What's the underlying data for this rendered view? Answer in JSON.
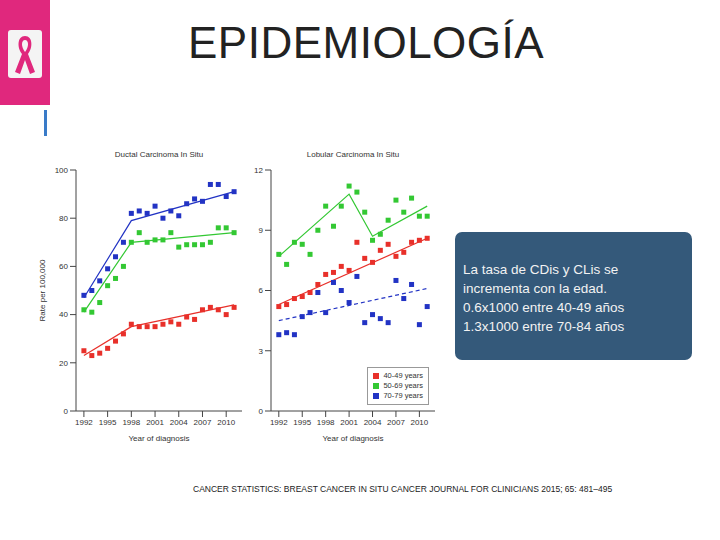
{
  "slide": {
    "title": "EPIDEMIOLOGÍA",
    "note": [
      "La tasa de CDis y CLis se",
      "incrementa con la edad.",
      "0.6x1000 entre 40-49 años",
      "1.3x1000 entre 70-84 años"
    ],
    "source": "CANCER STATISTICS: BREAST CANCER IN SITU CANCER JOURNAL FOR CLINICIANS 2015; 65: 481–495"
  },
  "chart_data": [
    {
      "type": "scatter",
      "title": "Ductal Carcinoma In Situ",
      "x_label": "Year of diagnosis",
      "y_label": "Rate per 100,000",
      "xlim": [
        1991,
        2012
      ],
      "xticks": [
        1992,
        1995,
        1998,
        2001,
        2004,
        2007,
        2010
      ],
      "ylim": [
        0,
        100
      ],
      "yticks": [
        0,
        20,
        40,
        60,
        80,
        100
      ],
      "grid": false,
      "x": [
        1992,
        1993,
        1994,
        1995,
        1996,
        1997,
        1998,
        1999,
        2000,
        2001,
        2002,
        2003,
        2004,
        2005,
        2006,
        2007,
        2008,
        2009,
        2010,
        2011
      ],
      "series": [
        {
          "type": "line",
          "color": "#e8302a",
          "line_style": "solid",
          "x": [
            1992,
            1998,
            2011
          ],
          "values": [
            23,
            35,
            44
          ]
        },
        {
          "type": "line",
          "color": "#33c833",
          "line_style": "solid",
          "x": [
            1992,
            1998,
            2011
          ],
          "values": [
            41,
            70,
            74
          ]
        },
        {
          "type": "line",
          "color": "#2233c4",
          "line_style": "solid",
          "x": [
            1992,
            1998,
            2011
          ],
          "values": [
            47,
            79,
            91
          ]
        },
        {
          "name": "40-49 years",
          "color": "#e8302a",
          "marker": "square",
          "values": [
            25,
            23,
            24,
            26,
            29,
            32,
            36,
            35,
            35,
            35,
            36,
            37,
            36,
            39,
            38,
            42,
            43,
            42,
            40,
            43
          ]
        },
        {
          "name": "50-69 years",
          "color": "#33c833",
          "marker": "square",
          "values": [
            42,
            41,
            45,
            52,
            55,
            60,
            70,
            74,
            70,
            71,
            71,
            74,
            68,
            69,
            69,
            69,
            70,
            76,
            76,
            74
          ]
        },
        {
          "name": "70-79 years",
          "color": "#2233c4",
          "marker": "square",
          "values": [
            48,
            50,
            54,
            59,
            64,
            70,
            82,
            83,
            82,
            85,
            80,
            83,
            81,
            86,
            88,
            87,
            94,
            94,
            89,
            91
          ]
        }
      ]
    },
    {
      "type": "scatter",
      "title": "Lobular Carcinoma In Situ",
      "x_label": "Year of diagnosis",
      "xlim": [
        1991,
        2012
      ],
      "xticks": [
        1992,
        1995,
        1998,
        2001,
        2004,
        2007,
        2010
      ],
      "ylim": [
        0,
        12
      ],
      "yticks": [
        0,
        3,
        6,
        9,
        12
      ],
      "grid": false,
      "legend": "lower right",
      "x": [
        1992,
        1993,
        1994,
        1995,
        1996,
        1997,
        1998,
        1999,
        2000,
        2001,
        2002,
        2003,
        2004,
        2005,
        2006,
        2007,
        2008,
        2009,
        2010,
        2011
      ],
      "series": [
        {
          "type": "line",
          "color": "#e8302a",
          "line_style": "solid",
          "x": [
            1992,
            2011
          ],
          "values": [
            5.3,
            8.6
          ]
        },
        {
          "type": "line",
          "color": "#33c833",
          "line_style": "solid",
          "x": [
            1992,
            2001,
            2004,
            2011
          ],
          "values": [
            7.7,
            10.8,
            8.7,
            10.2
          ]
        },
        {
          "type": "line",
          "color": "#2233c4",
          "line_style": "dashed",
          "x": [
            1992,
            2011
          ],
          "values": [
            4.5,
            6.1
          ]
        },
        {
          "name": "40-49 years",
          "color": "#e8302a",
          "marker": "square",
          "values": [
            5.2,
            5.3,
            5.6,
            5.7,
            5.9,
            6.3,
            6.8,
            6.9,
            7.2,
            7.0,
            8.4,
            7.6,
            7.4,
            8.0,
            8.3,
            7.7,
            7.9,
            8.4,
            8.5,
            8.6
          ]
        },
        {
          "name": "50-69 years",
          "color": "#33c833",
          "marker": "square",
          "values": [
            7.8,
            7.3,
            8.4,
            8.3,
            7.8,
            9.0,
            10.2,
            9.2,
            10.2,
            11.2,
            10.9,
            9.9,
            8.5,
            8.8,
            9.5,
            10.5,
            9.9,
            10.6,
            9.7,
            9.7
          ]
        },
        {
          "name": "70-79 years",
          "color": "#2233c4",
          "marker": "square",
          "values": [
            3.8,
            3.9,
            3.8,
            4.7,
            4.9,
            5.9,
            4.9,
            6.4,
            6.0,
            5.4,
            6.7,
            4.4,
            4.8,
            4.6,
            4.4,
            6.5,
            5.6,
            6.3,
            4.3,
            5.2
          ]
        }
      ]
    }
  ]
}
